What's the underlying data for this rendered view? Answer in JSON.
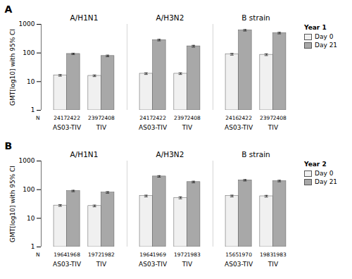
{
  "chart_data": [
    {
      "type": "bar",
      "title": "A",
      "log": "y",
      "grid": false,
      "legend": "upper right",
      "legend_title": "Year 1",
      "y_label": "GMT[log10] with 95% CI",
      "ylim": [
        1,
        1000
      ],
      "yticks": [
        1,
        10,
        100,
        1000
      ],
      "category_groups": [
        "A/H1N1",
        "A/H3N2",
        "B strain"
      ],
      "categories": [
        "AS03-TIV",
        "TIV",
        "AS03-TIV",
        "TIV",
        "AS03-TIV",
        "TIV"
      ],
      "n_label": "N",
      "series": [
        {
          "name": "Day 0",
          "color": "#f0f0f0",
          "values": [
            16.5,
            16.0,
            19.0,
            19.0,
            90,
            87
          ],
          "error_low": [
            15.5,
            15.0,
            17.8,
            17.8,
            84,
            81
          ],
          "error_high": [
            17.5,
            17.0,
            20.2,
            20.2,
            96,
            93
          ],
          "n": [
            "2417",
            "2397",
            "2417",
            "2397",
            "2416",
            "2397"
          ]
        },
        {
          "name": "Day 21",
          "color": "#a8a8a8",
          "values": [
            93,
            79,
            282,
            172,
            620,
            495
          ],
          "error_low": [
            88,
            74,
            265,
            160,
            585,
            465
          ],
          "error_high": [
            98,
            84,
            300,
            185,
            658,
            526
          ],
          "n": [
            "2422",
            "2408",
            "2422",
            "2408",
            "2422",
            "2408"
          ]
        }
      ]
    },
    {
      "type": "bar",
      "title": "B",
      "log": "y",
      "grid": false,
      "legend": "upper right",
      "legend_title": "Year 2",
      "y_label": "GMT[log10] with 95% CI",
      "ylim": [
        1,
        1000
      ],
      "yticks": [
        1,
        10,
        100,
        1000
      ],
      "category_groups": [
        "A/H1N1",
        "A/H3N2",
        "B strain"
      ],
      "categories": [
        "AS03-TIV",
        "TIV",
        "AS03-TIV",
        "TIV",
        "AS03-TIV",
        "TIV"
      ],
      "n_label": "N",
      "series": [
        {
          "name": "Day 0",
          "color": "#f0f0f0",
          "values": [
            28,
            27,
            60,
            52,
            60,
            59
          ],
          "error_low": [
            26.2,
            25.2,
            56,
            48,
            56,
            55
          ],
          "error_high": [
            29.8,
            28.8,
            64,
            56,
            64,
            63
          ],
          "n": [
            "1964",
            "1972",
            "1964",
            "1972",
            "1565",
            "1983"
          ]
        },
        {
          "name": "Day 21",
          "color": "#a8a8a8",
          "values": [
            90,
            80,
            290,
            185,
            213,
            200
          ],
          "error_low": [
            85,
            75,
            273,
            174,
            201,
            188
          ],
          "error_high": [
            95,
            85,
            308,
            197,
            226,
            213
          ],
          "n": [
            "1968",
            "1982",
            "1969",
            "1983",
            "1970",
            "1983"
          ]
        }
      ]
    }
  ]
}
